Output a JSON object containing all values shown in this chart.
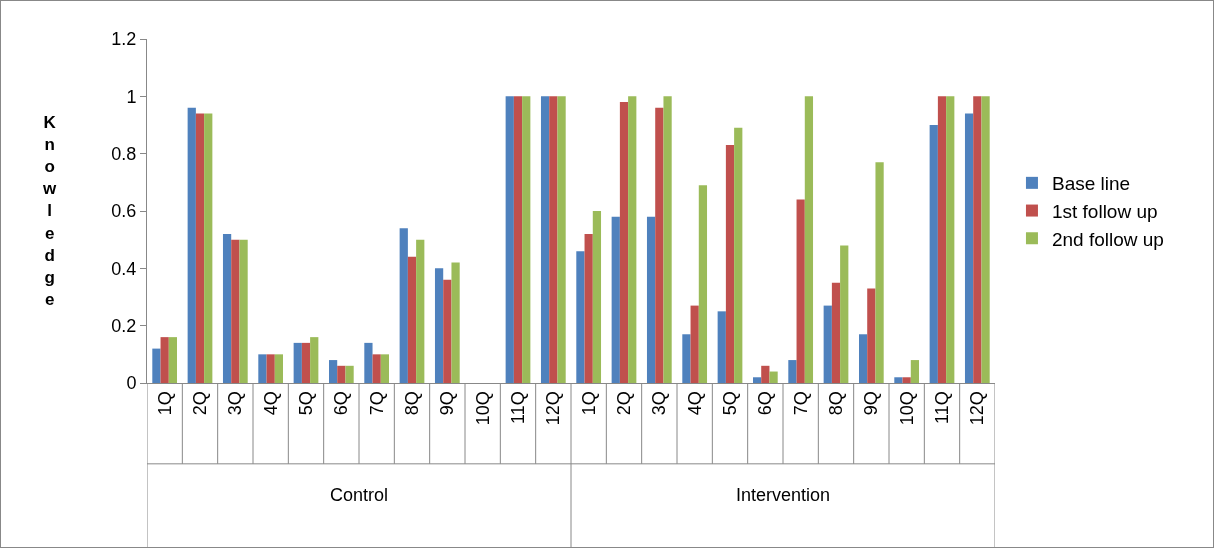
{
  "chart_data": {
    "type": "bar",
    "ylabel": "Knowledge",
    "categories": [
      "1Q",
      "2Q",
      "3Q",
      "4Q",
      "5Q",
      "6Q",
      "7Q",
      "8Q",
      "9Q",
      "10Q",
      "11Q",
      "12Q",
      "1Q",
      "2Q",
      "3Q",
      "4Q",
      "5Q",
      "6Q",
      "7Q",
      "8Q",
      "9Q",
      "10Q",
      "11Q",
      "12Q"
    ],
    "series": [
      {
        "name": "Base line",
        "color": "#4f81bd",
        "values": [
          0.12,
          0.96,
          0.52,
          0.1,
          0.14,
          0.08,
          0.14,
          0.54,
          0.4,
          0,
          1,
          1,
          0.46,
          0.58,
          0.58,
          0.17,
          0.25,
          0.02,
          0.08,
          0.27,
          0.17,
          0.02,
          0.9,
          0.94
        ]
      },
      {
        "name": "1st follow up",
        "color": "#c0504d",
        "values": [
          0.16,
          0.94,
          0.5,
          0.1,
          0.14,
          0.06,
          0.1,
          0.44,
          0.36,
          0,
          1,
          1,
          0.52,
          0.98,
          0.96,
          0.27,
          0.83,
          0.06,
          0.64,
          0.35,
          0.33,
          0.02,
          1,
          1
        ]
      },
      {
        "name": "2nd follow up",
        "color": "#9bbb59",
        "values": [
          0.16,
          0.94,
          0.5,
          0.1,
          0.16,
          0.06,
          0.1,
          0.5,
          0.42,
          0,
          1,
          1,
          0.6,
          1,
          1,
          0.69,
          0.89,
          0.04,
          1,
          0.48,
          0.77,
          0.08,
          1,
          1
        ]
      }
    ],
    "annotations": [
      "Control",
      "Intervention"
    ],
    "ylim": [
      0,
      1.2
    ],
    "yticks": [
      0,
      0.2,
      0.4,
      0.6,
      0.8,
      1,
      1.2
    ],
    "grid": false,
    "legend": "right"
  }
}
